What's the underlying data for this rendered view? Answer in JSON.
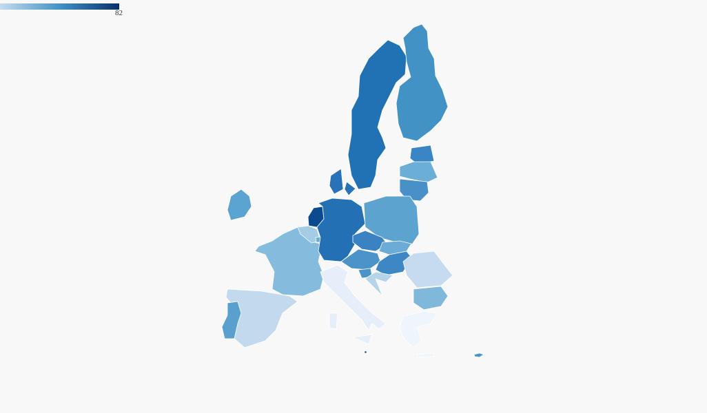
{
  "legend": {
    "max_label": "82",
    "gradient_start": "#c6dbef",
    "gradient_mid": "#4292c6",
    "gradient_end": "#08306b"
  },
  "background": "#f8f8f8",
  "region_fills": {
    "SE": "#2171b5",
    "FI": "#4292c6",
    "EE": "#3a86c4",
    "LV": "#6baed6",
    "LT": "#4a90c8",
    "DK": "#2a72b7",
    "IE": "#5ba3d0",
    "NL": "#0b4a8e",
    "BE": "#a6cbe4",
    "LU": "#6baed6",
    "DE": "#2470b5",
    "PL": "#5ca3d0",
    "CZ": "#3a82c2",
    "SK": "#6aacd5",
    "AT": "#4a94c9",
    "HU": "#3d88c4",
    "SI": "#4a94c9",
    "HR": "#b5d4ea",
    "RO": "#c6dbef",
    "BG": "#7fb8da",
    "GR": "#eef5fc",
    "FR": "#85bbdc",
    "ES": "#c2d9ee",
    "PT": "#5aa0cf",
    "IT": "#e6eff9",
    "MT": "#08306b",
    "CY": "#4a94c9"
  }
}
